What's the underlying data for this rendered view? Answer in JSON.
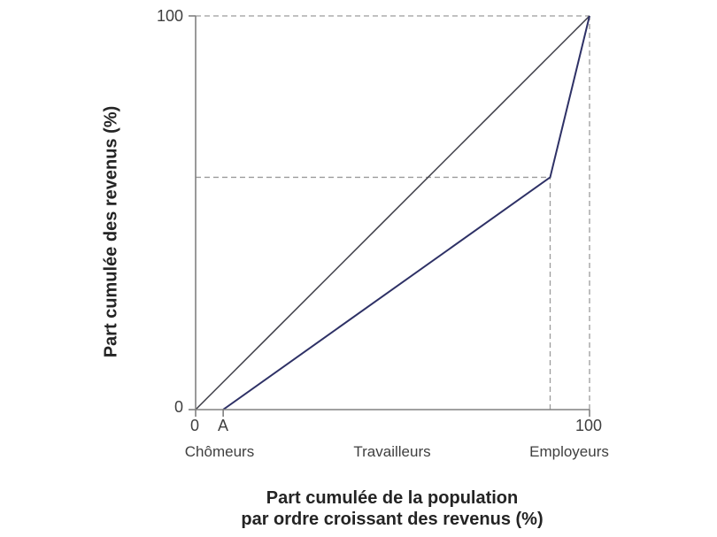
{
  "figure": {
    "background": "#ffffff"
  },
  "chart_data": {
    "type": "line",
    "title": "",
    "ylabel": "Part cumulée des revenus (%)",
    "xlabel_line1": "Part cumulée de la population",
    "xlabel_line2": "par ordre croissant des revenus (%)",
    "xlim": [
      0,
      100
    ],
    "ylim": [
      0,
      100
    ],
    "grid": false,
    "legend_position": "none",
    "axis_color": "#808080",
    "guide_color": "#9c9c9c",
    "x_ticks": [
      {
        "value": 0,
        "label": "0"
      },
      {
        "value": 7,
        "label": "A"
      },
      {
        "value": 100,
        "label": "100"
      }
    ],
    "y_ticks": [
      {
        "value": 0,
        "label": "0"
      },
      {
        "value": 100,
        "label": "100"
      }
    ],
    "category_labels": [
      {
        "label": "Chômeurs",
        "x": 6
      },
      {
        "label": "Travailleurs",
        "x": 50
      },
      {
        "label": "Employeurs",
        "x": 95
      }
    ],
    "series": [
      {
        "name": "ligne-egalite-parfaite",
        "color": "#3a3a44",
        "width": 1.5,
        "points": [
          [
            0,
            0
          ],
          [
            100,
            100
          ]
        ]
      },
      {
        "name": "courbe-de-lorenz",
        "color": "#2e3166",
        "width": 2,
        "points": [
          [
            7,
            0
          ],
          [
            90,
            59
          ],
          [
            100,
            100
          ]
        ]
      }
    ],
    "guide_lines": [
      {
        "from": [
          0,
          100
        ],
        "to": [
          100,
          100
        ]
      },
      {
        "from": [
          100,
          0
        ],
        "to": [
          100,
          100
        ]
      },
      {
        "from": [
          0,
          59
        ],
        "to": [
          90,
          59
        ]
      },
      {
        "from": [
          90,
          0
        ],
        "to": [
          90,
          59
        ]
      }
    ]
  }
}
